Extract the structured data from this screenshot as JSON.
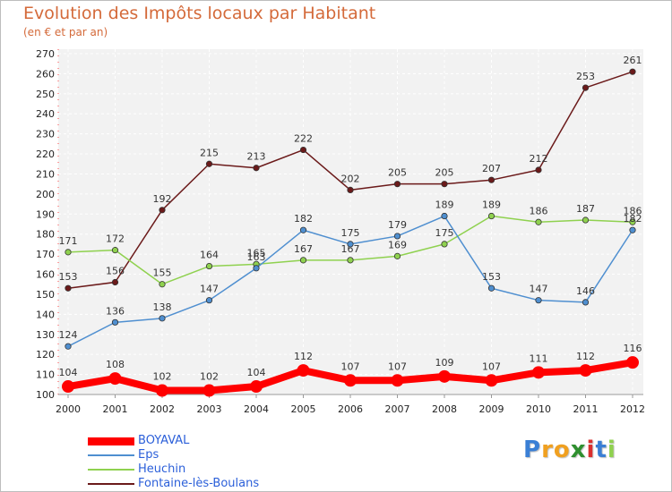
{
  "chart_data": {
    "type": "line",
    "title": "Evolution des Impôts locaux par Habitant",
    "subtitle": "(en € et par an)",
    "xlabel": "",
    "ylabel": "",
    "ylim": [
      100,
      270
    ],
    "y_ticks": [
      100,
      110,
      120,
      130,
      140,
      150,
      160,
      170,
      180,
      190,
      200,
      210,
      220,
      230,
      240,
      250,
      260,
      270
    ],
    "grid": true,
    "legend_position": "bottom-left",
    "x": [
      "2000",
      "2001",
      "2002",
      "2003",
      "2004",
      "2005",
      "2006",
      "2007",
      "2008",
      "2009",
      "2010",
      "2011",
      "2012"
    ],
    "series": [
      {
        "name": "BOYAVAL",
        "color": "#ff0000",
        "values": [
          104,
          108,
          102,
          102,
          104,
          112,
          107,
          107,
          109,
          107,
          111,
          112,
          116
        ]
      },
      {
        "name": "Eps",
        "color": "#4f8fd0",
        "values": [
          124,
          136,
          138,
          147,
          163,
          182,
          175,
          179,
          189,
          153,
          147,
          146,
          182
        ]
      },
      {
        "name": "Heuchin",
        "color": "#8fd14f",
        "values": [
          171,
          172,
          155,
          164,
          165,
          167,
          167,
          169,
          175,
          189,
          186,
          187,
          186
        ]
      },
      {
        "name": "Fontaine-lès-Boulans",
        "color": "#6b1a1a",
        "values": [
          153,
          156,
          192,
          215,
          213,
          222,
          202,
          205,
          205,
          207,
          212,
          253,
          261
        ]
      }
    ]
  },
  "logo": {
    "letters": [
      "P",
      "r",
      "o",
      "x",
      "i",
      "t",
      "i"
    ],
    "colors": [
      "#3a7fd5",
      "#f0a020",
      "#f0a020",
      "#2f8f2f",
      "#d93030",
      "#3a7fd5",
      "#8fd14f"
    ]
  }
}
